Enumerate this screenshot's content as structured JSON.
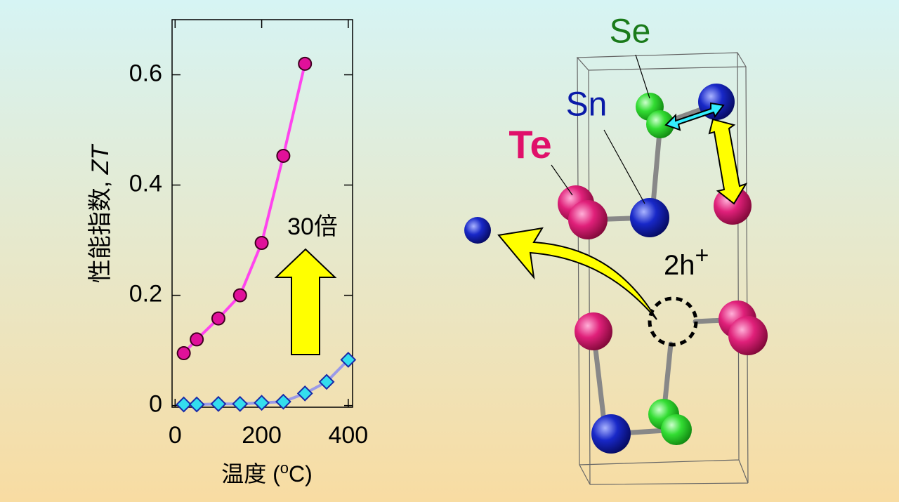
{
  "chart_data": {
    "type": "line",
    "xlabel": {
      "text": "温度 (",
      "sup": "o",
      "end": "C)"
    },
    "ylabel": {
      "text": "性能指数, ",
      "italic": "ZT"
    },
    "xlim": [
      -7,
      410
    ],
    "xticks": [
      0,
      200,
      400
    ],
    "ylim": [
      -0.003,
      0.7
    ],
    "yticks": [
      0,
      0.2,
      0.4,
      0.6
    ],
    "series": [
      {
        "color": "#ff44ee",
        "marker_color": "#e0109a",
        "marker": "circle",
        "x": [
          20,
          50,
          100,
          150,
          200,
          250,
          300
        ],
        "values": [
          0.095,
          0.12,
          0.158,
          0.2,
          0.295,
          0.453,
          0.62
        ]
      },
      {
        "color": "#9a9ae8",
        "marker_color": "#33ddee",
        "marker": "diamond",
        "x": [
          20,
          50,
          100,
          150,
          200,
          250,
          300,
          350,
          400
        ],
        "values": [
          0.002,
          0.002,
          0.003,
          0.003,
          0.005,
          0.007,
          0.022,
          0.043,
          0.083
        ]
      }
    ],
    "annotation": "30倍"
  },
  "diagram": {
    "labels": {
      "se": "Se",
      "sn": "Sn",
      "te": "Te"
    },
    "hole": {
      "base": "2h",
      "sup": "+"
    }
  }
}
